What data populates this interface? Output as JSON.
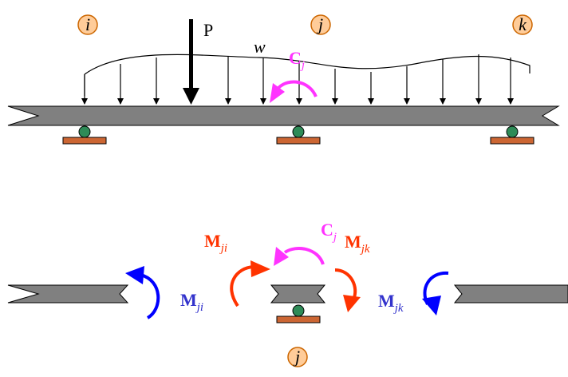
{
  "colors": {
    "beam": "#808080",
    "outline": "#000000",
    "node_fill": "#FFCC99",
    "node_stroke": "#CC6600",
    "support_plate": "#CC6633",
    "roller": "#2E8B57",
    "moment_applied": "#FF33FF",
    "moment_member": "#0000FF",
    "moment_joint": "#FF3300"
  },
  "top": {
    "nodes": [
      {
        "label": "i"
      },
      {
        "label": "j"
      },
      {
        "label": "k"
      }
    ],
    "point_load": "P",
    "distributed_load": "w",
    "applied_moment": {
      "main": "C",
      "sub": "j"
    }
  },
  "bottom": {
    "joint_label": "j",
    "applied_moment": {
      "main": "C",
      "sub": "j"
    },
    "joint_moment_ji": {
      "main": "M",
      "sub": "ji"
    },
    "joint_moment_jk": {
      "main": "M",
      "sub": "jk"
    },
    "member_moment_ji": {
      "main": "M",
      "sub": "ji"
    },
    "member_moment_jk": {
      "main": "M",
      "sub": "jk"
    }
  }
}
